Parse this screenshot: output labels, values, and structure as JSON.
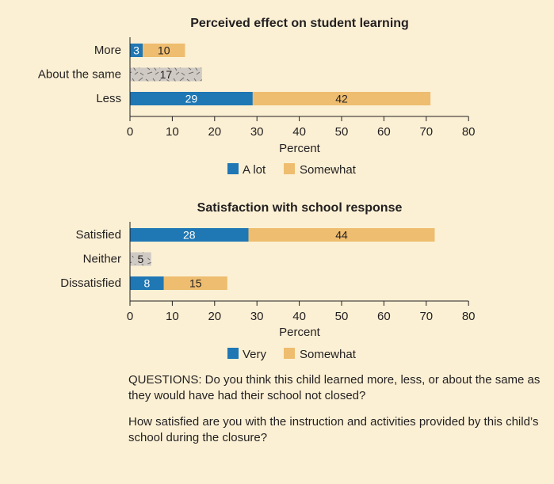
{
  "colors": {
    "background": "#fbf0d4",
    "primary": "#1f77b4",
    "secondary": "#eebd6f",
    "neutral": "#cfcac3",
    "axis": "#231f20"
  },
  "chart_data": [
    {
      "type": "bar",
      "orientation": "horizontal",
      "stacked": true,
      "title": "Perceived effect on student learning",
      "categories": [
        "More",
        "About the same",
        "Less"
      ],
      "series": [
        {
          "name": "A lot",
          "values": [
            3,
            null,
            29
          ],
          "color": "#1f77b4"
        },
        {
          "name": "Somewhat",
          "values": [
            10,
            null,
            42
          ],
          "color": "#eebd6f"
        },
        {
          "name": "",
          "values": [
            null,
            17,
            null
          ],
          "color": "#cfcac3",
          "pattern": "hatched"
        }
      ],
      "xlabel": "Percent",
      "xlim": [
        0,
        80
      ],
      "xticks": [
        0,
        10,
        20,
        30,
        40,
        50,
        60,
        70,
        80
      ],
      "legend": [
        "A lot",
        "Somewhat"
      ],
      "legend_position": "bottom"
    },
    {
      "type": "bar",
      "orientation": "horizontal",
      "stacked": true,
      "title": "Satisfaction with school response",
      "categories": [
        "Satisfied",
        "Neither",
        "Dissatisfied"
      ],
      "series": [
        {
          "name": "Very",
          "values": [
            28,
            null,
            8
          ],
          "color": "#1f77b4"
        },
        {
          "name": "Somewhat",
          "values": [
            44,
            null,
            15
          ],
          "color": "#eebd6f"
        },
        {
          "name": "",
          "values": [
            null,
            5,
            null
          ],
          "color": "#cfcac3",
          "pattern": "hatched"
        }
      ],
      "xlabel": "Percent",
      "xlim": [
        0,
        80
      ],
      "xticks": [
        0,
        10,
        20,
        30,
        40,
        50,
        60,
        70,
        80
      ],
      "legend": [
        "Very",
        "Somewhat"
      ],
      "legend_position": "bottom"
    }
  ],
  "questions": {
    "q1": "QUESTIONS: Do you think this child learned more, less, or about the same as they would have had their school not closed?",
    "q2": "How satisfied are you with the instruction and activities provided by this child’s school during the closure?"
  }
}
